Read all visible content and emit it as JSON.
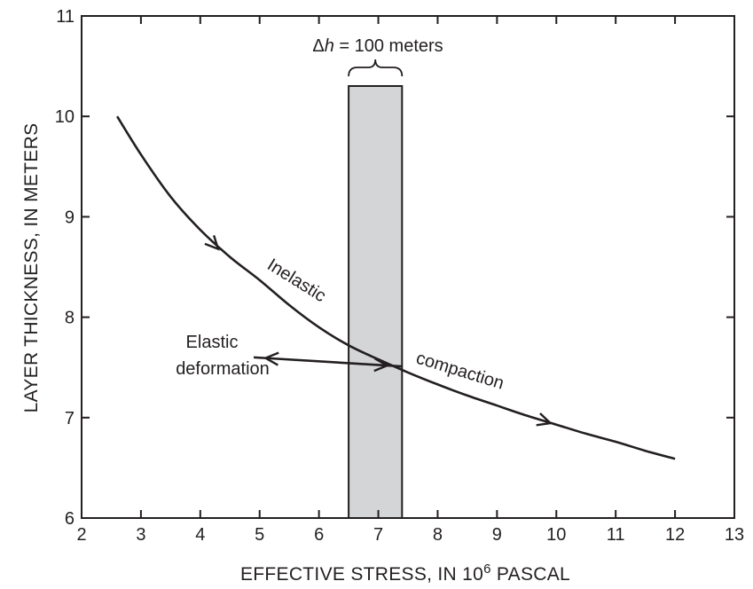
{
  "chart_data": {
    "type": "line",
    "title": "",
    "xlabel": "EFFECTIVE STRESS, IN 10",
    "xlabel_superscript": "6",
    "xlabel_suffix": " PASCAL",
    "ylabel": "LAYER THICKNESS, IN METERS",
    "xlim": [
      2,
      13
    ],
    "ylim": [
      6,
      11
    ],
    "xticks": [
      "2",
      "3",
      "4",
      "5",
      "6",
      "7",
      "8",
      "9",
      "10",
      "11",
      "12",
      "13"
    ],
    "yticks": [
      "6",
      "7",
      "8",
      "9",
      "10",
      "11"
    ],
    "grid": false,
    "series": [
      {
        "x": [
          2.6,
          3.0,
          3.5,
          4.0,
          4.5,
          5.0,
          5.5,
          6.0,
          6.5,
          7.0,
          7.5,
          8.0,
          8.5,
          9.0,
          9.5,
          10.0,
          10.5,
          11.0,
          11.5,
          12.0
        ],
        "y": [
          10.0,
          9.62,
          9.2,
          8.87,
          8.6,
          8.37,
          8.12,
          7.9,
          7.72,
          7.58,
          7.45,
          7.33,
          7.22,
          7.12,
          7.02,
          6.93,
          6.84,
          6.76,
          6.67,
          6.59
        ]
      }
    ],
    "elastic_segment": {
      "x": [
        4.9,
        7.4
      ],
      "y": [
        7.6,
        7.51
      ]
    },
    "shaded_band": {
      "x": [
        6.5,
        7.4
      ]
    },
    "annotations": {
      "band_label_symbol": "Δ",
      "band_label_var": "h",
      "band_label_rest": " = 100 meters",
      "inelastic_1": "Inelastic",
      "inelastic_2": "compaction",
      "elastic_1": "Elastic",
      "elastic_2": "deformation"
    },
    "colors": {
      "line": "#231f20",
      "band": "#d4d5d7"
    }
  }
}
